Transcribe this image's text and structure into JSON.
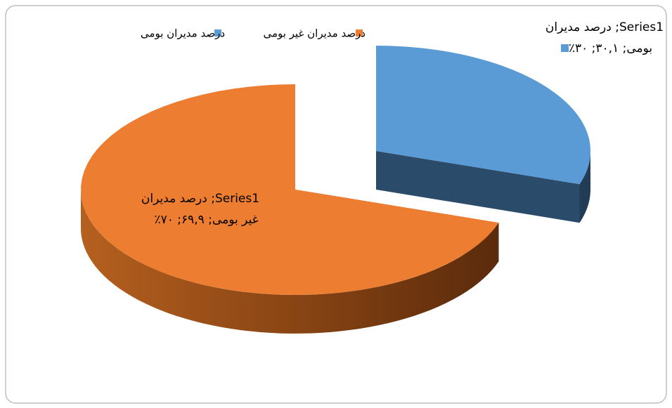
{
  "chart_data": {
    "type": "pie",
    "three_d": true,
    "categories": [
      "درصد مدیران بومی",
      "درصد مدیران غیر بومی"
    ],
    "values": [
      30.1,
      69.9
    ],
    "value_labels": [
      "Series1; درصد مدیران بومی; ۳۰,۱; ۳۰٪",
      "Series1; درصد مدیران غیر بومی; ۶۹,۹; ۷۰٪"
    ],
    "colors": [
      "#5b9bd5",
      "#ed7d31"
    ],
    "legend": "top"
  }
}
